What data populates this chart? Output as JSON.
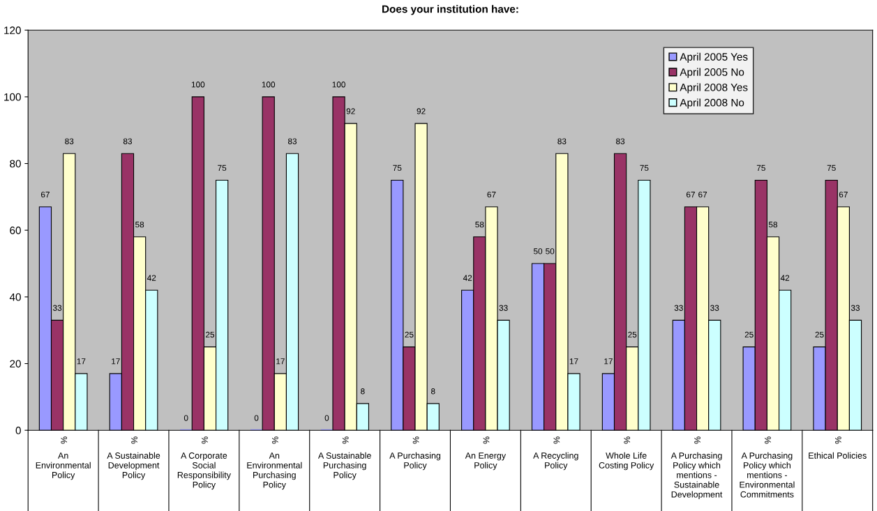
{
  "chart_data": {
    "type": "bar",
    "title": "Does your institution have:",
    "categories": [
      "%\nAn\nEnvironmental\nPolicy",
      "%\nA Sustainable\nDevelopment\nPolicy",
      "%\nA Corporate\nSocial\nResponsibility\nPolicy",
      "%\nAn\nEnvironmental\nPurchasing\nPolicy",
      "%\nA Sustainable\nPurchasing\nPolicy",
      "%\nA Purchasing\nPolicy",
      "%\nAn Energy\nPolicy",
      "%\nA Recycling\nPolicy",
      "%\nWhole Life\nCosting Policy",
      "%\nA Purchasing\nPolicy which\nmentions -\nSustainable\nDevelopment",
      "%\nA Purchasing\nPolicy which\nmentions -\nEnvironmental\nCommitments",
      "%\nEthical Policies"
    ],
    "series": [
      {
        "name": "April 2005 Yes",
        "color": "#9999ff",
        "values": [
          67,
          17,
          0,
          0,
          0,
          75,
          42,
          50,
          17,
          33,
          25,
          25
        ]
      },
      {
        "name": "April 2005 No",
        "color": "#993366",
        "values": [
          33,
          83,
          100,
          100,
          100,
          25,
          58,
          50,
          83,
          67,
          75,
          75
        ]
      },
      {
        "name": "April 2008 Yes",
        "color": "#ffffcc",
        "values": [
          83,
          58,
          25,
          17,
          92,
          92,
          67,
          83,
          25,
          67,
          58,
          67
        ]
      },
      {
        "name": "April 2008 No",
        "color": "#ccffff",
        "values": [
          17,
          42,
          75,
          83,
          8,
          8,
          33,
          17,
          75,
          33,
          42,
          33
        ]
      }
    ],
    "ylim": [
      0,
      120
    ],
    "yticks": [
      0,
      20,
      40,
      60,
      80,
      100,
      120
    ],
    "data_labels": true,
    "grid": false,
    "legend": "top right"
  }
}
